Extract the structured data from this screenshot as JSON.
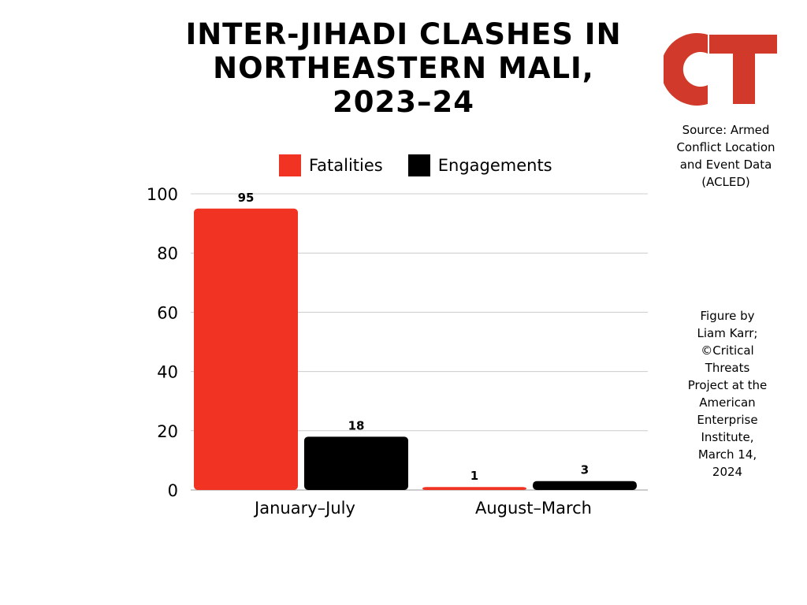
{
  "title": "INTER-JIHADI CLASHES IN NORTHEASTERN MALI, 2023–24",
  "logo": {
    "text": "CT",
    "color": "#d13a2a"
  },
  "source": "Source: Armed Conflict Location and Event Data (ACLED)",
  "credit": [
    "Figure by",
    "Liam Karr;",
    "©Critical",
    "Threats",
    "Project at the",
    "American",
    "Enterprise",
    "Institute,",
    "March 14,",
    "2024"
  ],
  "colors": {
    "fatalities": "#f03323",
    "engagements": "#000000",
    "grid": "#cccccc"
  },
  "chart_data": {
    "type": "bar",
    "title": "INTER-JIHADI CLASHES IN NORTHEASTERN MALI, 2023–24",
    "categories": [
      "January–July",
      "August–March"
    ],
    "series": [
      {
        "name": "Fatalities",
        "values": [
          95,
          1
        ]
      },
      {
        "name": "Engagements",
        "values": [
          18,
          3
        ]
      }
    ],
    "ylim": [
      0,
      100
    ],
    "yticks": [
      0,
      20,
      40,
      60,
      80,
      100
    ],
    "xlabel": "",
    "ylabel": "",
    "grid": true,
    "legend": "top-center",
    "data_labels": true
  }
}
